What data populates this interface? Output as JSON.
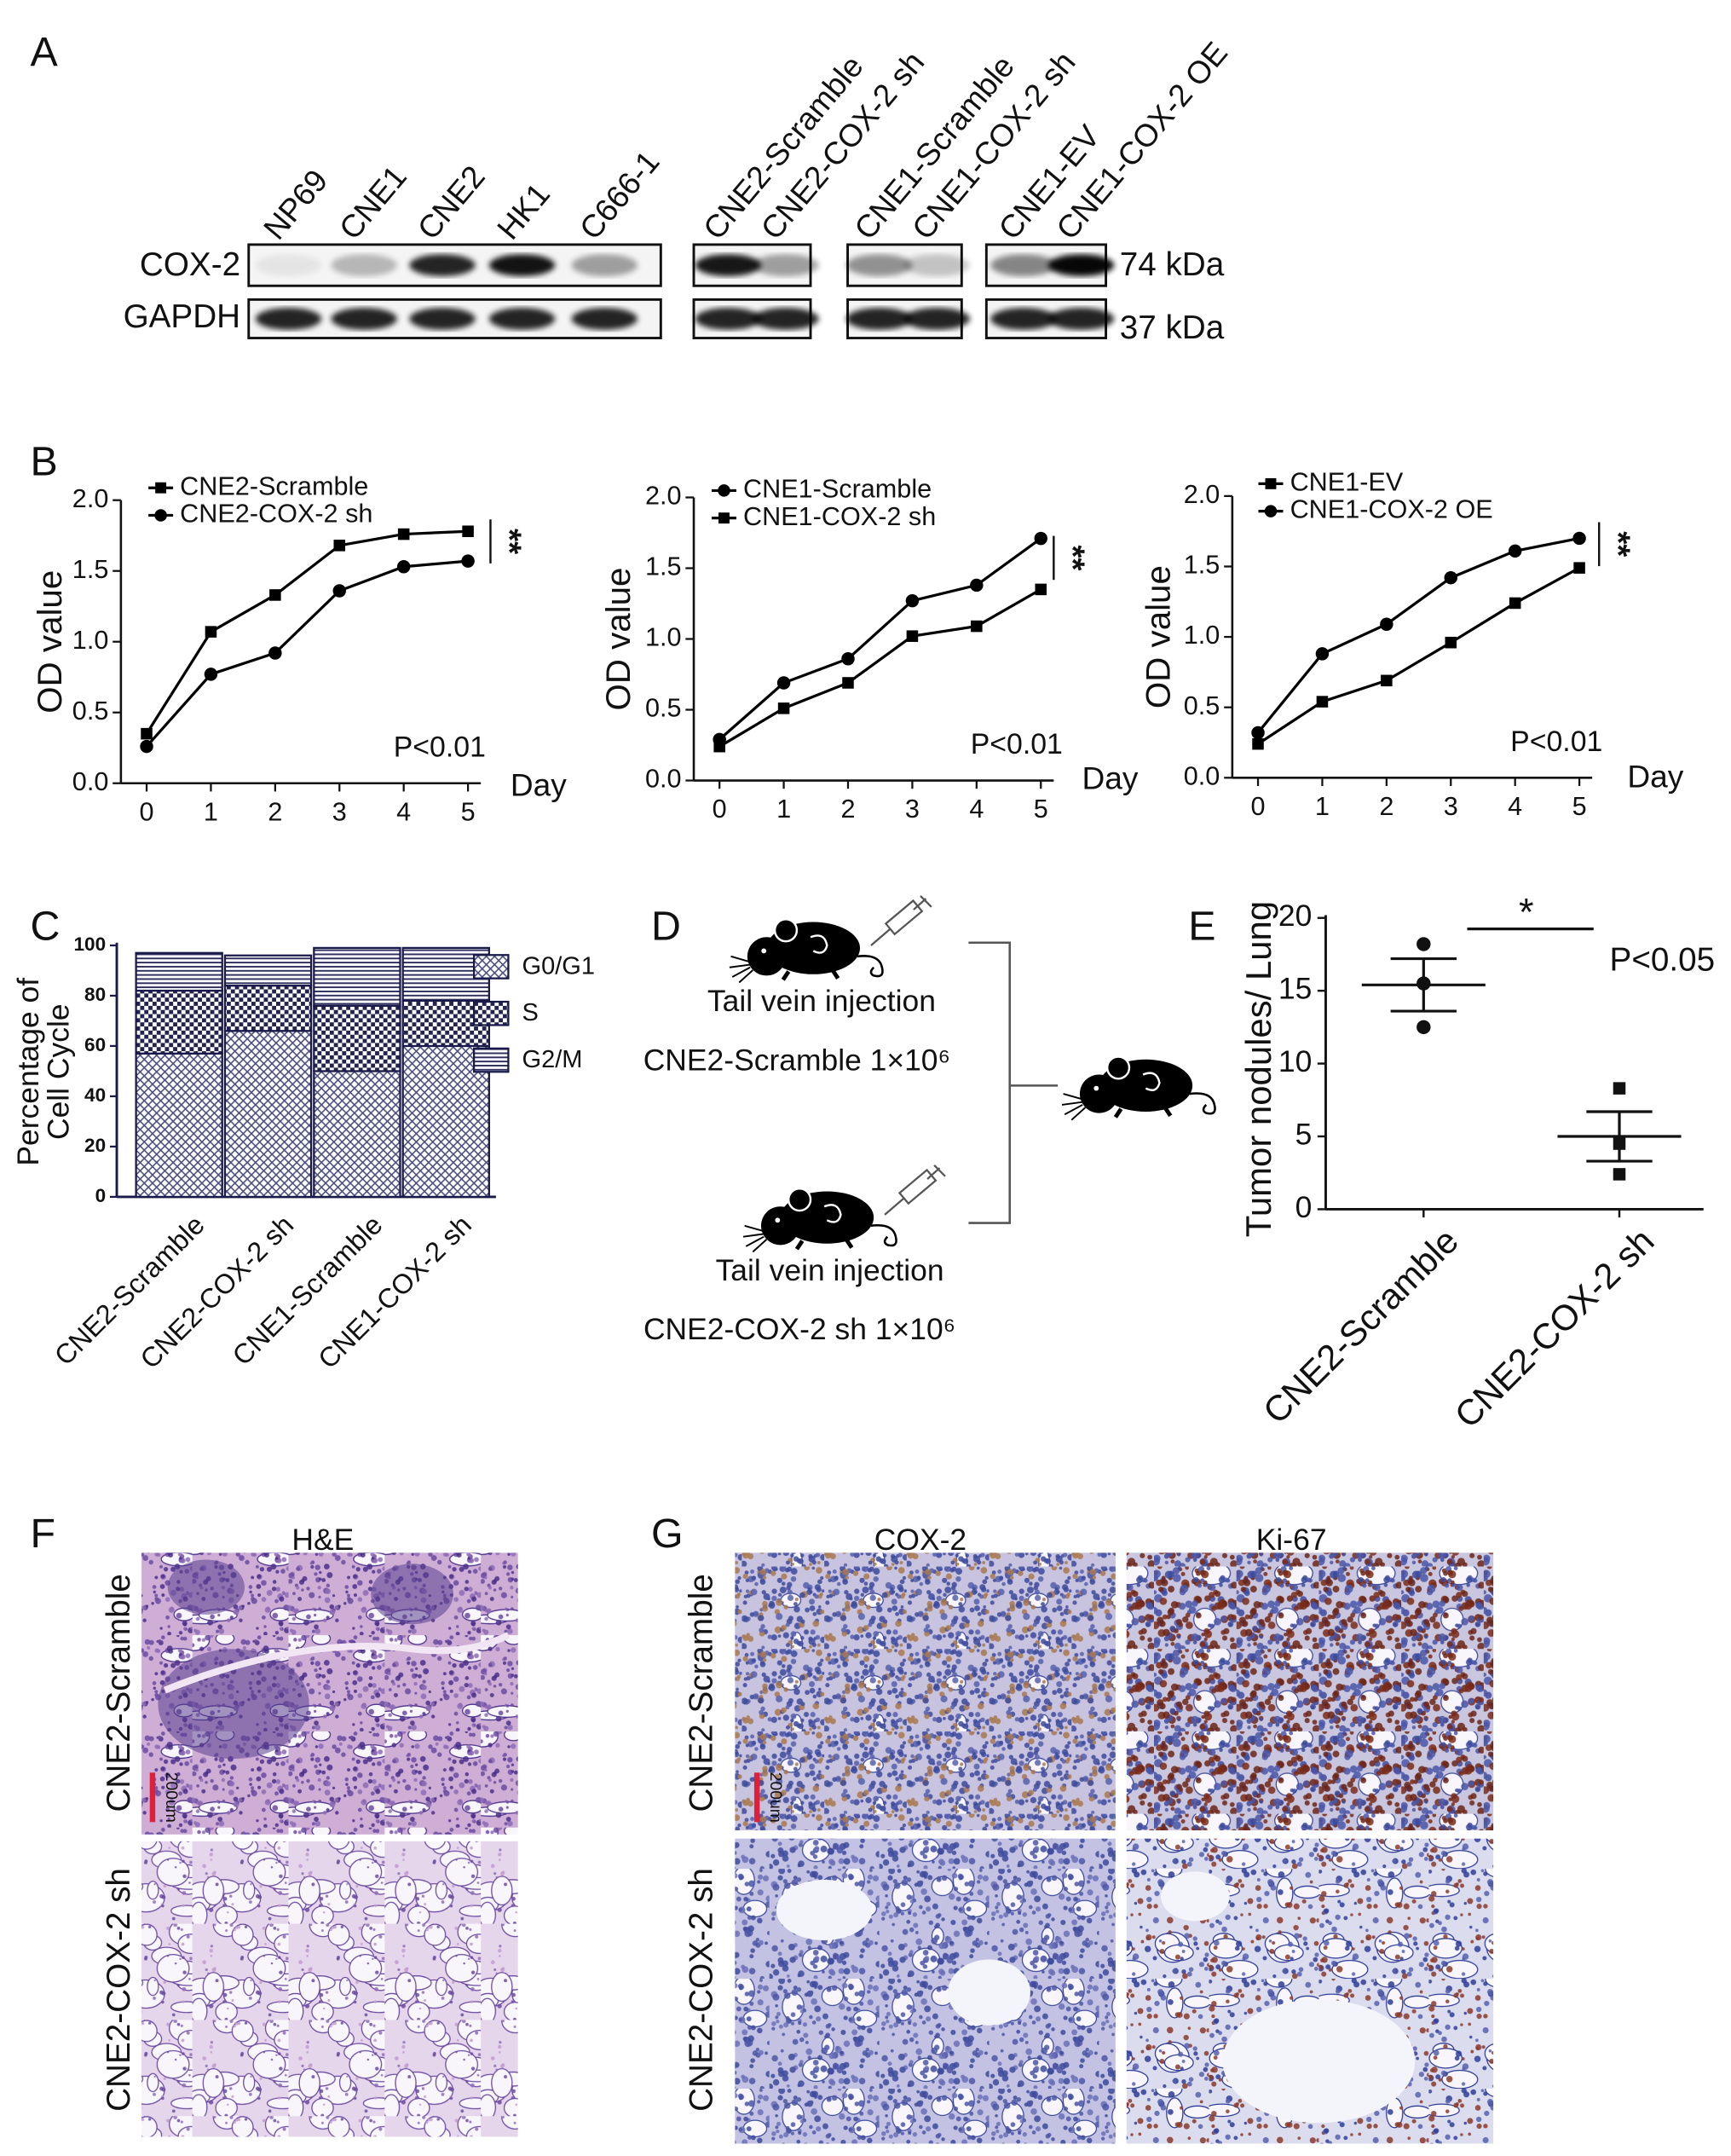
{
  "figure": {
    "panel_labels": [
      "A",
      "B",
      "C",
      "D",
      "E",
      "F",
      "G"
    ],
    "blot": {
      "lanes": [
        "NP69",
        "CNE1",
        "CNE2",
        "HK1",
        "C666-1",
        "CNE2-Scramble",
        "CNE2-COX-2 sh",
        "CNE1-Scramble",
        "CNE1-COX-2 sh",
        "CNE1-EV",
        "CNE1-COX-2 OE"
      ],
      "rows": [
        "COX-2",
        "GAPDH"
      ],
      "sizes": [
        "74 kDa",
        "37 kDa"
      ]
    },
    "diagram": {
      "injection": [
        "Tail vein injection",
        "Tail vein injection"
      ],
      "groups": [
        "CNE2-Scramble 1×10⁶",
        "CNE2-COX-2 sh 1×10⁶"
      ]
    },
    "histology": {
      "title": "H&E",
      "rows": [
        "CNE2-Scramble",
        "CNE2-COX-2 sh"
      ],
      "scale": "200um"
    },
    "ihc": {
      "columns": [
        "COX-2",
        "Ki-67"
      ],
      "rows": [
        "CNE2-Scramble",
        "CNE2-COX-2 sh"
      ],
      "scale": "200um"
    }
  },
  "chart_data": [
    {
      "type": "line",
      "x": [
        0,
        1,
        2,
        3,
        4,
        5
      ],
      "xlim": [
        -0.4,
        5.2
      ],
      "xticks": [
        0,
        1,
        2,
        3,
        4,
        5
      ],
      "ylim": [
        0,
        2
      ],
      "yticks": [
        {
          "value": 0,
          "label": "0.0"
        },
        0.5,
        {
          "value": 1,
          "label": "1.0"
        },
        1.5,
        {
          "value": 2,
          "label": "2.0"
        }
      ],
      "xlabel": "Day",
      "ylabel": "OD value",
      "annotation": "P<0.01",
      "significance": "**",
      "series": [
        {
          "name": "CNE2-Scramble",
          "color": "#000000",
          "marker": "square",
          "values": [
            0.35,
            1.07,
            1.33,
            1.68,
            1.76,
            1.78
          ]
        },
        {
          "name": "CNE2-COX-2 sh",
          "color": "#000000",
          "marker": "circle",
          "values": [
            0.26,
            0.77,
            0.92,
            1.36,
            1.53,
            1.57
          ]
        }
      ]
    },
    {
      "type": "line",
      "x": [
        0,
        1,
        2,
        3,
        4,
        5
      ],
      "xlim": [
        -0.4,
        5.2
      ],
      "xticks": [
        0,
        1,
        2,
        3,
        4,
        5
      ],
      "ylim": [
        0,
        2
      ],
      "yticks": [
        {
          "value": 0,
          "label": "0.0"
        },
        0.5,
        {
          "value": 1,
          "label": "1.0"
        },
        1.5,
        {
          "value": 2,
          "label": "2.0"
        }
      ],
      "xlabel": "Day",
      "ylabel": "OD value",
      "annotation": "P<0.01",
      "significance": "**",
      "series": [
        {
          "name": "CNE1-Scramble",
          "color": "#000000",
          "marker": "circle",
          "values": [
            0.29,
            0.69,
            0.86,
            1.27,
            1.38,
            1.71
          ]
        },
        {
          "name": "CNE1-COX-2 sh",
          "color": "#000000",
          "marker": "square",
          "values": [
            0.24,
            0.51,
            0.69,
            1.02,
            1.09,
            1.35
          ]
        }
      ]
    },
    {
      "type": "line",
      "x": [
        0,
        1,
        2,
        3,
        4,
        5
      ],
      "xlim": [
        -0.4,
        5.2
      ],
      "xticks": [
        0,
        1,
        2,
        3,
        4,
        5
      ],
      "ylim": [
        0,
        2
      ],
      "yticks": [
        {
          "value": 0,
          "label": "0.0"
        },
        0.5,
        {
          "value": 1,
          "label": "1.0"
        },
        1.5,
        {
          "value": 2,
          "label": "2.0"
        }
      ],
      "xlabel": "Day",
      "ylabel": "OD value",
      "annotation": "P<0.01",
      "significance": "**",
      "series": [
        {
          "name": "CNE1-EV",
          "color": "#000000",
          "marker": "square",
          "values": [
            0.24,
            0.54,
            0.69,
            0.96,
            1.24,
            1.49
          ]
        },
        {
          "name": "CNE1-COX-2 OE",
          "color": "#000000",
          "marker": "circle",
          "values": [
            0.32,
            0.88,
            1.09,
            1.42,
            1.61,
            1.7
          ]
        }
      ]
    },
    {
      "type": "bar",
      "stacked": true,
      "categories": [
        "CNE2-Scramble",
        "CNE2-COX-2 sh",
        "CNE1-Scramble",
        "CNE1-COX-2 sh"
      ],
      "ylim": [
        0,
        100
      ],
      "yticks": [
        0,
        20,
        40,
        60,
        80,
        100
      ],
      "ylabel": [
        "Percentage of",
        "Cell Cycle"
      ],
      "series": [
        {
          "name": "G0/G1",
          "color": "#4a4e7c",
          "pattern": "crosshatch",
          "values": [
            57,
            66,
            50,
            60
          ]
        },
        {
          "name": "S",
          "color": "#23234d",
          "pattern": "checker",
          "values": [
            25,
            18,
            26,
            18
          ]
        },
        {
          "name": "G2/M",
          "color": "#2f2f5e",
          "pattern": "lines",
          "values": [
            15,
            12,
            23,
            21
          ]
        }
      ]
    },
    {
      "type": "dot",
      "categories": [
        "CNE2-Scramble",
        "CNE2-COX-2 sh"
      ],
      "markers": [
        "circle",
        "square"
      ],
      "values": [
        [
          18.2,
          15.5,
          12.5
        ],
        [
          8.3,
          4.5,
          2.4
        ]
      ],
      "means": [
        15.4,
        5.0
      ],
      "errors": [
        1.8,
        1.7
      ],
      "ylim": [
        0,
        20
      ],
      "yticks": [
        0,
        5,
        10,
        15,
        20
      ],
      "ylabel": "Tumor nodules/ Lung",
      "annotation": "P<0.05",
      "significance": "*"
    }
  ]
}
